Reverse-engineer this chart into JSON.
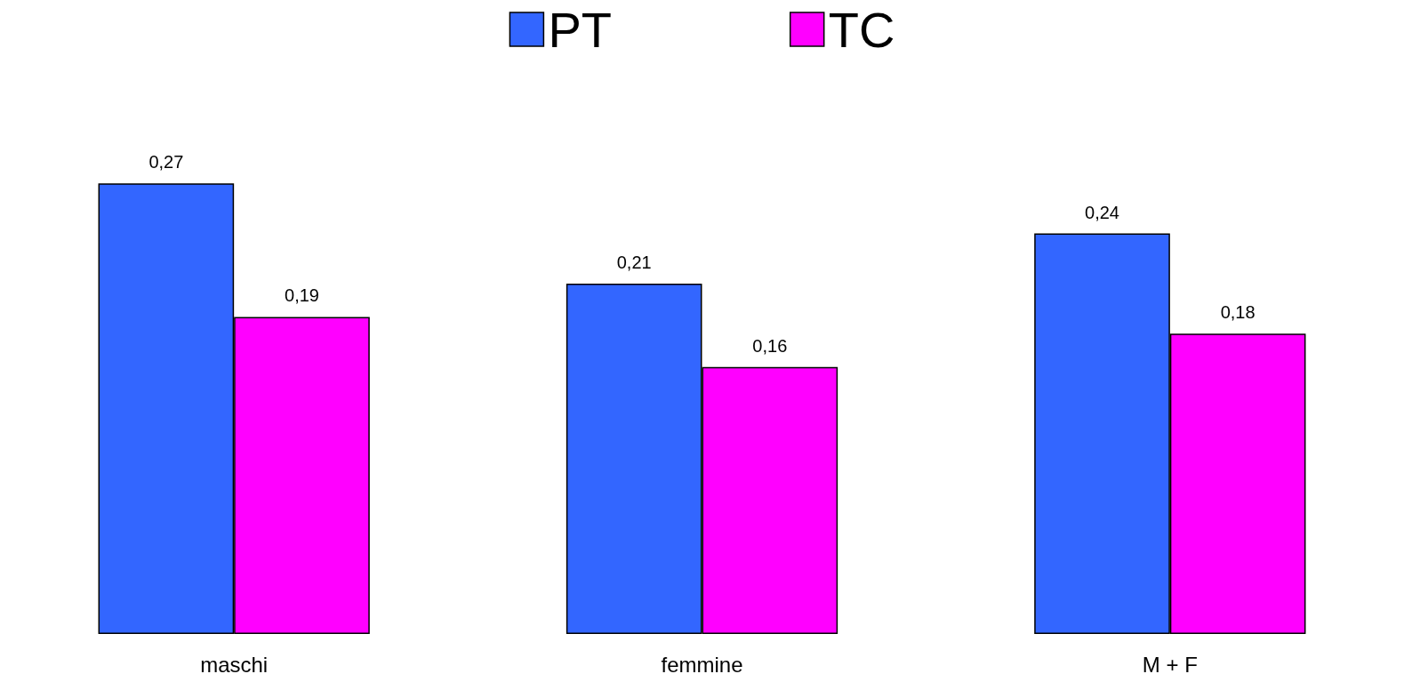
{
  "chart_data": {
    "type": "bar",
    "categories": [
      "maschi",
      "femmine",
      "M + F"
    ],
    "series": [
      {
        "name": "PT",
        "color": "#3366ff",
        "values": [
          0.27,
          0.21,
          0.24
        ],
        "value_labels": [
          "0,27",
          "0,21",
          "0,24"
        ]
      },
      {
        "name": "TC",
        "color": "#ff00ff",
        "values": [
          0.19,
          0.16,
          0.18
        ],
        "value_labels": [
          "0,19",
          "0,16",
          "0,18"
        ]
      }
    ],
    "legend": "top"
  }
}
